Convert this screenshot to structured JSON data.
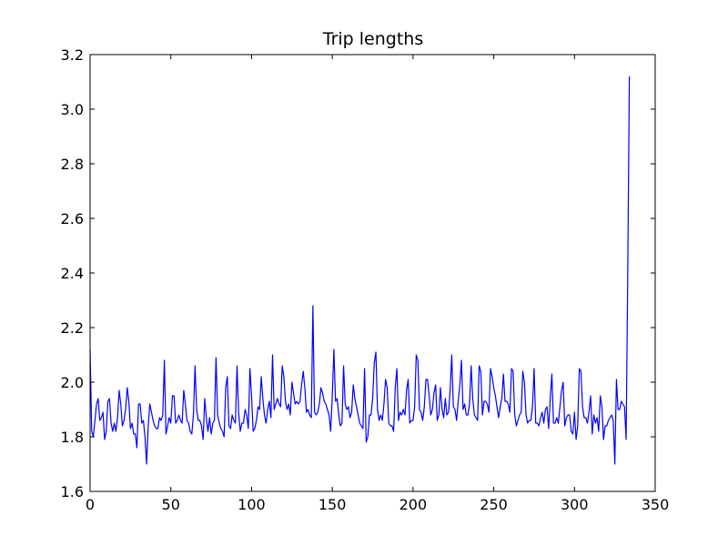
{
  "chart_data": {
    "type": "line",
    "title": "Trip lengths",
    "xlabel": "",
    "ylabel": "",
    "xlim": [
      0,
      350
    ],
    "ylim": [
      1.6,
      3.2
    ],
    "xticks": [
      0,
      50,
      100,
      150,
      200,
      250,
      300,
      350
    ],
    "yticks": [
      1.6,
      1.8,
      2.0,
      2.2,
      2.4,
      2.6,
      2.8,
      3.0,
      3.2
    ],
    "xtick_labels": [
      "0",
      "50",
      "100",
      "150",
      "200",
      "250",
      "300",
      "350"
    ],
    "ytick_labels": [
      "1.6",
      "1.8",
      "2.0",
      "2.2",
      "2.4",
      "2.6",
      "2.8",
      "3.0",
      "3.2"
    ],
    "grid": false,
    "line_color": "#0000ff",
    "series": [
      {
        "values": [
          2.12,
          1.82,
          1.8,
          1.86,
          1.92,
          1.94,
          1.86,
          1.87,
          1.89,
          1.79,
          1.82,
          1.93,
          1.94,
          1.85,
          1.82,
          1.85,
          1.82,
          1.87,
          1.97,
          1.92,
          1.84,
          1.86,
          1.9,
          1.98,
          1.93,
          1.83,
          1.85,
          1.81,
          1.81,
          1.76,
          1.92,
          1.92,
          1.85,
          1.86,
          1.8,
          1.7,
          1.84,
          1.92,
          1.89,
          1.86,
          1.84,
          1.83,
          1.83,
          1.87,
          1.86,
          1.88,
          2.08,
          1.81,
          1.84,
          1.87,
          1.85,
          1.95,
          1.95,
          1.85,
          1.86,
          1.88,
          1.86,
          1.85,
          1.97,
          1.92,
          1.86,
          1.85,
          1.82,
          1.81,
          1.88,
          2.06,
          1.9,
          1.86,
          1.86,
          1.84,
          1.79,
          1.94,
          1.87,
          1.82,
          1.87,
          1.81,
          1.85,
          1.86,
          2.09,
          1.88,
          1.85,
          1.83,
          1.82,
          1.8,
          1.98,
          2.02,
          1.84,
          1.83,
          1.88,
          1.86,
          1.85,
          2.06,
          1.89,
          1.82,
          1.85,
          1.85,
          1.9,
          1.88,
          1.83,
          2.05,
          1.95,
          1.82,
          1.83,
          1.86,
          1.91,
          1.9,
          2.02,
          1.94,
          1.88,
          1.85,
          1.9,
          1.93,
          1.87,
          2.1,
          1.9,
          1.92,
          1.94,
          1.92,
          1.91,
          2.06,
          2.02,
          1.93,
          1.9,
          1.92,
          1.88,
          2.0,
          1.96,
          1.92,
          1.93,
          1.92,
          1.93,
          1.99,
          2.04,
          1.98,
          1.89,
          1.9,
          1.88,
          1.87,
          2.28,
          1.89,
          1.88,
          1.89,
          1.92,
          1.98,
          1.96,
          1.93,
          1.92,
          1.9,
          1.88,
          1.82,
          1.95,
          2.12,
          1.93,
          1.94,
          1.88,
          1.84,
          1.85,
          2.06,
          1.92,
          1.9,
          1.91,
          1.87,
          1.89,
          1.99,
          1.94,
          1.91,
          1.88,
          1.85,
          1.84,
          1.83,
          2.05,
          1.78,
          1.8,
          1.88,
          1.88,
          1.94,
          2.07,
          2.11,
          1.9,
          1.86,
          1.88,
          1.86,
          1.92,
          2.01,
          1.98,
          1.85,
          1.84,
          1.84,
          1.82,
          1.98,
          2.05,
          1.86,
          1.89,
          1.88,
          1.9,
          1.88,
          1.97,
          2.01,
          1.85,
          1.86,
          1.86,
          1.91,
          2.1,
          2.08,
          1.9,
          1.89,
          1.86,
          1.91,
          2.01,
          2.01,
          1.95,
          1.88,
          1.9,
          1.96,
          1.99,
          1.86,
          1.88,
          1.98,
          1.9,
          1.87,
          1.94,
          1.88,
          1.89,
          1.97,
          2.1,
          1.91,
          1.9,
          1.86,
          1.93,
          1.99,
          2.08,
          1.9,
          1.92,
          1.88,
          1.88,
          1.92,
          2.06,
          1.94,
          1.88,
          1.87,
          1.86,
          2.06,
          2.04,
          1.88,
          1.93,
          1.93,
          1.92,
          1.89,
          2.05,
          2.02,
          1.98,
          1.95,
          1.91,
          1.87,
          1.91,
          1.94,
          2.03,
          1.93,
          1.93,
          1.92,
          1.89,
          2.05,
          2.04,
          1.88,
          1.84,
          1.86,
          1.88,
          1.89,
          2.04,
          2.0,
          1.88,
          1.85,
          1.86,
          1.86,
          1.91,
          2.05,
          1.85,
          1.85,
          1.84,
          1.87,
          1.89,
          1.85,
          1.9,
          1.91,
          1.83,
          1.94,
          2.03,
          1.85,
          1.85,
          1.87,
          1.85,
          1.91,
          1.97,
          2.0,
          1.84,
          1.87,
          1.88,
          1.88,
          1.82,
          1.81,
          1.89,
          1.79,
          1.84,
          2.05,
          2.04,
          1.91,
          1.87,
          1.87,
          1.85,
          1.89,
          1.95,
          1.81,
          1.88,
          1.85,
          1.87,
          1.82,
          1.95,
          1.91,
          1.79,
          1.84,
          1.84,
          1.86,
          1.87,
          1.88,
          1.86,
          1.7,
          2.01,
          1.9,
          1.9,
          1.93,
          1.92,
          1.91,
          1.79,
          2.4,
          3.12
        ]
      }
    ]
  }
}
